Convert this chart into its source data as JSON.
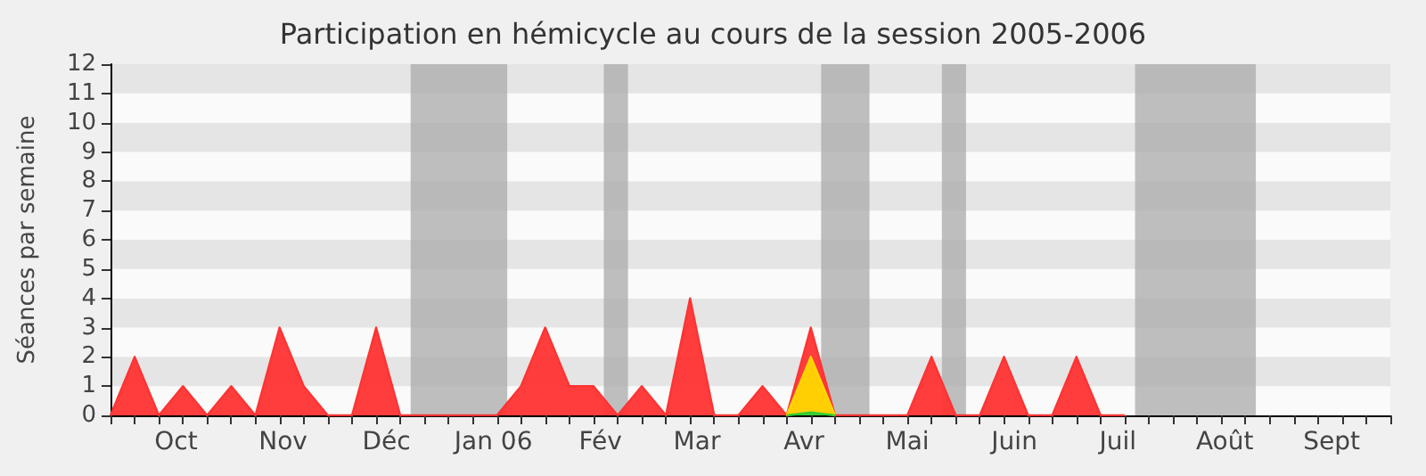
{
  "chart_data": {
    "type": "area",
    "title": "Participation en hémicycle au cours de la session 2005-2006",
    "ylabel": "Séances par semaine",
    "x": [
      "2005-09-26",
      "2005-10-03",
      "2005-10-10",
      "2005-10-17",
      "2005-10-24",
      "2005-10-31",
      "2005-11-07",
      "2005-11-14",
      "2005-11-21",
      "2005-11-28",
      "2005-12-05",
      "2005-12-12",
      "2005-12-19",
      "2005-12-26",
      "2006-01-02",
      "2006-01-09",
      "2006-01-16",
      "2006-01-23",
      "2006-01-30",
      "2006-02-06",
      "2006-02-13",
      "2006-02-20",
      "2006-02-27",
      "2006-03-06",
      "2006-03-13",
      "2006-03-20",
      "2006-03-27",
      "2006-04-03",
      "2006-04-10",
      "2006-04-17",
      "2006-04-24",
      "2006-05-01",
      "2006-05-08",
      "2006-05-15",
      "2006-05-22",
      "2006-05-29",
      "2006-06-05",
      "2006-06-12",
      "2006-06-19",
      "2006-06-26",
      "2006-07-03",
      "2006-07-10",
      "2006-07-17"
    ],
    "series": [
      {
        "color": "#ff3333",
        "values": [
          0,
          2,
          0,
          1,
          0,
          1,
          0,
          3,
          1,
          0,
          0,
          3,
          0,
          0,
          0,
          0,
          0,
          1,
          3,
          1,
          1,
          0,
          1,
          0,
          4,
          0,
          0,
          1,
          0,
          3,
          0,
          0,
          0,
          0,
          2,
          0,
          0,
          2,
          0,
          0,
          2,
          0,
          0
        ]
      },
      {
        "color": "#ffd700",
        "values": [
          null,
          null,
          null,
          null,
          null,
          null,
          null,
          null,
          null,
          null,
          null,
          null,
          null,
          null,
          null,
          null,
          null,
          null,
          null,
          null,
          null,
          null,
          null,
          null,
          null,
          null,
          null,
          null,
          0,
          2,
          0,
          null,
          null,
          null,
          null,
          null,
          null,
          null,
          null,
          null,
          null,
          null,
          null
        ]
      },
      {
        "color": "#33cc33",
        "values": [
          null,
          null,
          null,
          null,
          null,
          null,
          null,
          null,
          null,
          null,
          null,
          null,
          null,
          null,
          null,
          null,
          null,
          null,
          null,
          null,
          null,
          null,
          null,
          null,
          null,
          null,
          null,
          null,
          0,
          0.1,
          0,
          null,
          null,
          null,
          null,
          null,
          null,
          null,
          null,
          null,
          null,
          null,
          null
        ]
      }
    ],
    "xlim": [
      "2005-09-26",
      "2006-10-02"
    ],
    "xticks": [
      {
        "value": "2005-10-15",
        "label": "Oct"
      },
      {
        "value": "2005-11-15",
        "label": "Nov"
      },
      {
        "value": "2005-12-15",
        "label": "Déc"
      },
      {
        "value": "2006-01-15",
        "label": "Jan 06"
      },
      {
        "value": "2006-02-15",
        "label": "Fév"
      },
      {
        "value": "2006-03-15",
        "label": "Mar"
      },
      {
        "value": "2006-04-15",
        "label": "Avr"
      },
      {
        "value": "2006-05-15",
        "label": "Mai"
      },
      {
        "value": "2006-06-15",
        "label": "Juin"
      },
      {
        "value": "2006-07-15",
        "label": "Juil"
      },
      {
        "value": "2006-08-15",
        "label": "Août"
      },
      {
        "value": "2006-09-15",
        "label": "Sept"
      }
    ],
    "ylim": [
      0,
      12
    ],
    "yticks": [
      0,
      1,
      2,
      3,
      4,
      5,
      6,
      7,
      8,
      9,
      10,
      11,
      12
    ],
    "bands": [
      {
        "axis": "x",
        "from": "2005-12-22",
        "to": "2006-01-19",
        "color": "#aaaaaa"
      },
      {
        "axis": "x",
        "from": "2006-02-16",
        "to": "2006-02-23",
        "color": "#aaaaaa"
      },
      {
        "axis": "x",
        "from": "2006-04-20",
        "to": "2006-05-04",
        "color": "#aaaaaa"
      },
      {
        "axis": "x",
        "from": "2006-05-25",
        "to": "2006-06-01",
        "color": "#aaaaaa"
      },
      {
        "axis": "x",
        "from": "2006-07-20",
        "to": "2006-08-24",
        "color": "#aaaaaa"
      }
    ],
    "marker": "none",
    "line_style": "solid"
  }
}
